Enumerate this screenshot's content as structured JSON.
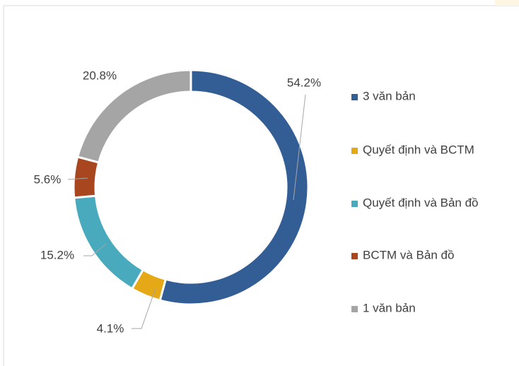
{
  "chart_data": {
    "type": "donut",
    "categories": [
      "3 văn bản",
      "Quyết định và BCTM",
      "Quyết định và Bản đồ",
      "BCTM và Bản đồ",
      "1 văn bản"
    ],
    "values": [
      54.2,
      4.1,
      15.2,
      5.6,
      20.8
    ],
    "value_labels": [
      "54.2%",
      "4.1%",
      "15.2%",
      "5.6%",
      "20.8%"
    ],
    "colors": [
      "#335e95",
      "#e5a817",
      "#4aaabd",
      "#a8461f",
      "#a5a5a5"
    ],
    "legend": "right"
  }
}
